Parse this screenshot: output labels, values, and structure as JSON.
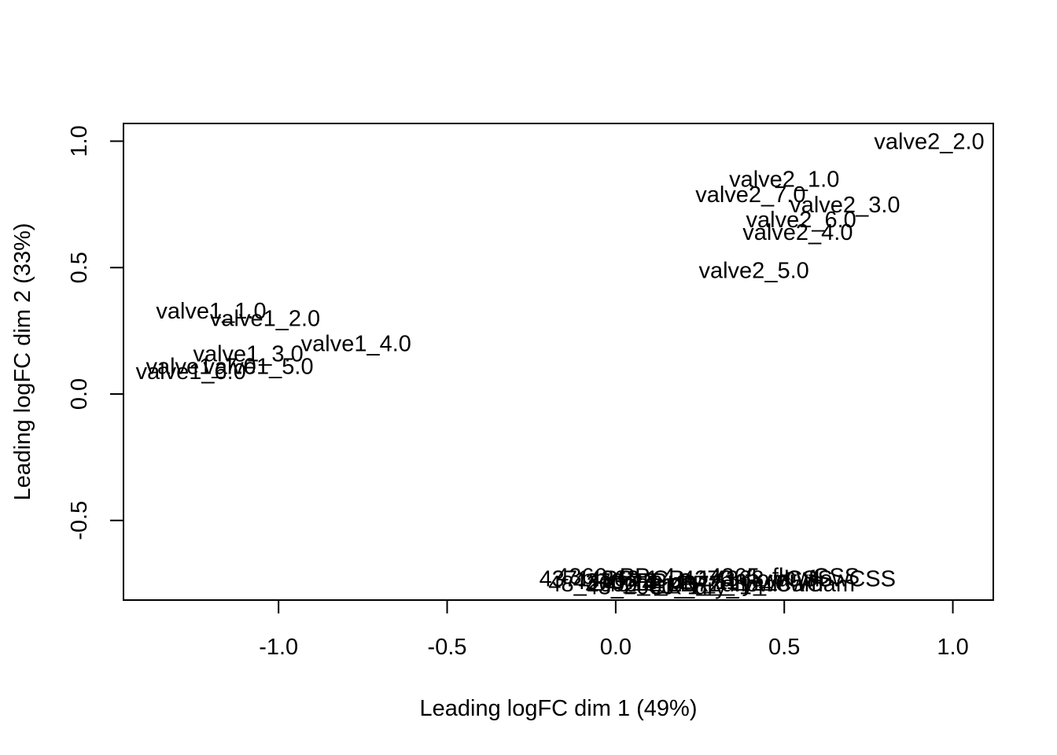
{
  "chart_data": {
    "type": "scatter",
    "xlabel": "Leading logFC dim 1 (49%)",
    "ylabel": "Leading logFC dim 2 (33%)",
    "xlim": [
      -1.46,
      1.12
    ],
    "ylim": [
      -0.815,
      1.07
    ],
    "xticks": [
      -1.0,
      -0.5,
      0.0,
      0.5,
      1.0
    ],
    "xtick_labels": [
      "-1.0",
      "-0.5",
      "0.0",
      "0.5",
      "1.0"
    ],
    "yticks": [
      -0.5,
      0.0,
      0.5,
      1.0
    ],
    "ytick_labels": [
      "-0.5",
      "0.0",
      "0.5",
      "1.0"
    ],
    "grid": false,
    "points": [
      {
        "label": "valve2_2.0",
        "x": 0.93,
        "y": 1.0
      },
      {
        "label": "valve2_1.0",
        "x": 0.5,
        "y": 0.85
      },
      {
        "label": "valve2_7.0",
        "x": 0.4,
        "y": 0.79
      },
      {
        "label": "valve2_3.0",
        "x": 0.68,
        "y": 0.75
      },
      {
        "label": "valve2_6.0",
        "x": 0.55,
        "y": 0.69
      },
      {
        "label": "valve2_4.0",
        "x": 0.54,
        "y": 0.64
      },
      {
        "label": "valve2_5.0",
        "x": 0.41,
        "y": 0.49
      },
      {
        "label": "valve1_1.0",
        "x": -1.2,
        "y": 0.33
      },
      {
        "label": "valve1_2.0",
        "x": -1.04,
        "y": 0.3
      },
      {
        "label": "valve1_4.0",
        "x": -0.77,
        "y": 0.2
      },
      {
        "label": "valve1_3.0",
        "x": -1.09,
        "y": 0.16
      },
      {
        "label": "valve1_5.0",
        "x": -1.06,
        "y": 0.11
      },
      {
        "label": "valve1_7.0",
        "x": -1.23,
        "y": 0.11
      },
      {
        "label": "valve1_6.0",
        "x": -1.26,
        "y": 0.09
      }
    ],
    "cluster_labels": [
      {
        "label": "4371_PP_1",
        "x": -0.05,
        "y": -0.73
      },
      {
        "label": "48_2000_2",
        "x": -0.03,
        "y": -0.75
      },
      {
        "label": "4366_PP_4",
        "x": 0.0,
        "y": -0.72
      },
      {
        "label": "4373_PP_2",
        "x": 0.05,
        "y": -0.74
      },
      {
        "label": "43_2000_1",
        "x": 0.08,
        "y": -0.76
      },
      {
        "label": "4362_CR_1",
        "x": 0.1,
        "y": -0.73
      },
      {
        "label": "4374_LR_2",
        "x": 0.14,
        "y": -0.75
      },
      {
        "label": "PP_dry_11",
        "x": 0.2,
        "y": -0.74
      },
      {
        "label": "CR_dry_14",
        "x": 0.27,
        "y": -0.76
      },
      {
        "label": "4376_flowCSS",
        "x": 0.42,
        "y": -0.73
      },
      {
        "label": "4377_flowCam",
        "x": 0.39,
        "y": -0.75
      },
      {
        "label": "4365_flowCSS",
        "x": 0.5,
        "y": -0.72
      },
      {
        "label": "LR_dry_flowCam",
        "x": 0.45,
        "y": -0.75
      },
      {
        "label": "4368_dryflowCSS",
        "x": 0.56,
        "y": -0.73
      }
    ]
  }
}
